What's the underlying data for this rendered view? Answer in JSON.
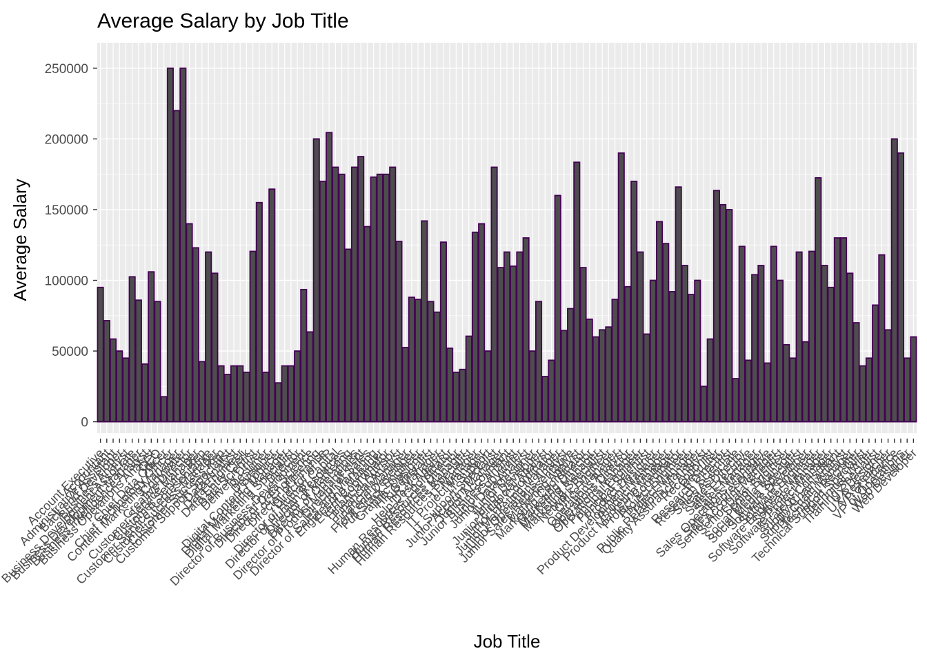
{
  "chart_data": {
    "type": "bar",
    "title": "Average Salary by Job Title",
    "xlabel": "Job Title",
    "ylabel": "Average Salary",
    "ylim": [
      -8000,
      268000
    ],
    "yticks": [
      0,
      50000,
      100000,
      150000,
      200000,
      250000
    ],
    "ytick_labels": [
      "0",
      "50000",
      "100000",
      "150000",
      "200000",
      "250000"
    ],
    "grid": true,
    "bar_fill": "#4d4d4d",
    "bar_outline": "#440154",
    "panel_background": "#ebebeb",
    "grid_color": "#ffffff",
    "categories": [
      "Account Executive",
      "Accountant",
      "Administrative Assistant",
      "Back end Developer",
      "Business Analyst",
      "Business Development Associate",
      "Business Development Manager",
      "Business Intelligence Analyst",
      "Business Operations Analyst",
      "CEO",
      "Chief Data Officer",
      "Chief Technology Officer",
      "Content Marketing Manager",
      "Copywriter",
      "Creative Director",
      "Customer Service Manager",
      "Customer Service Rep",
      "Customer Service Representative",
      "Customer Success Manager",
      "Customer Success Rep",
      "Customer Support Specialist",
      "Data Analyst",
      "Data Engineer",
      "Data Entry Clerk",
      "Data Scientist",
      "Delivery Driver",
      "Designer",
      "Developer",
      "Digital Content Producer",
      "Digital Marketing Manager",
      "Digital Marketing Specialist",
      "Director",
      "Director of Business Development",
      "Director of Data Science",
      "Director of Engineering",
      "Director of Finance",
      "Director of HR",
      "Director of Human Capital",
      "Director of Human Resources",
      "Director of Marketing",
      "Director of Operations",
      "Director of Product Management",
      "Director of Sales",
      "Director of Sales and Marketing",
      "Engineering Manager",
      "Event Coordinator",
      "Financial Advisor",
      "Financial Analyst",
      "Financial Manager",
      "Front end Developer",
      "Full Stack Engineer",
      "Graphic Designer",
      "HR Generalist",
      "HR Manager",
      "Help Desk Analyst",
      "Human Resources Coordinator",
      "Human Resources Director",
      "Human Resources Manager",
      "Human Resources Specialist",
      "IT Manager",
      "IT Project Manager",
      "IT Support",
      "IT Support Specialist",
      "Junior Account Manager",
      "Junior Accountant",
      "Junior Business Analyst",
      "Junior Copywriter",
      "Junior Data Analyst",
      "Junior Designer",
      "Junior Developer",
      "Junior Financial Analyst",
      "Junior HR Coordinator",
      "Junior Marketing Manager",
      "Junior Operations Analyst",
      "Junior Sales Representative",
      "Marketing Analyst",
      "Marketing Coordinator",
      "Marketing Director",
      "Marketing Manager",
      "Marketing Specialist",
      "Network Engineer",
      "Office Manager",
      "Operations Analyst",
      "Operations Director",
      "Operations Manager",
      "Principal Engineer",
      "Principal Scientist",
      "Product Designer",
      "Product Development Manager",
      "Product Manager",
      "Product Marketing Manager",
      "Project Coordinator",
      "Project Engineer",
      "Project Manager",
      "Public Relations Manager",
      "Quality Assurance Analyst",
      "Receptionist",
      "Recruiter",
      "Research Director",
      "Research Scientist",
      "Sales Associate",
      "Sales Director",
      "Sales Executive",
      "Sales Manager",
      "Sales Operations Manager",
      "Sales Representative",
      "Senior Account Manager",
      "Senior Data Scientist",
      "Senior Engineer",
      "Social Media Manager",
      "Social Media Specialist",
      "Software Developer",
      "Software Engineer",
      "Software Engineer Manager",
      "Software Manager",
      "Software Project Manager",
      "Strategy Consultant",
      "Supply Chain Analyst",
      "Supply Chain Manager",
      "Technical Recruiter",
      "Technical Support Specialist",
      "Technical Writer",
      "Training Specialist",
      "UX Designer",
      "UX Researcher",
      "VP of Finance",
      "VP of Operations",
      "Web Designer",
      "Web Developer"
    ],
    "values": [
      95000,
      71500,
      58500,
      50000,
      45000,
      102500,
      86000,
      40800,
      106000,
      85000,
      17700,
      250000,
      220000,
      250000,
      140000,
      123000,
      42500,
      120000,
      105000,
      39500,
      33500,
      39500,
      39500,
      35000,
      120500,
      155000,
      35000,
      164500,
      27500,
      39500,
      39500,
      50000,
      93500,
      63500,
      200000,
      170000,
      204500,
      180000,
      175000,
      122000,
      180000,
      187500,
      138000,
      173000,
      175000,
      175000,
      180000,
      127500,
      52500,
      88000,
      86500,
      142000,
      85000,
      77500,
      127000,
      52000,
      35000,
      37000,
      60500,
      134000,
      140000,
      50000,
      180000,
      109000,
      120000,
      110000,
      120000,
      130000,
      50000,
      85000,
      32000,
      43500,
      160000,
      64500,
      80000,
      183500,
      109000,
      72500,
      60000,
      65000,
      67000,
      86500,
      190000,
      95500,
      170000,
      120000,
      62000,
      100000,
      141500,
      126000,
      92000,
      166000,
      110500,
      90000,
      100000,
      25000,
      58500,
      163500,
      153500,
      150000,
      30500,
      124000,
      43500,
      104000,
      110500,
      41500,
      124000,
      100000,
      54500,
      45000,
      120000,
      56500,
      120500,
      172500,
      110500,
      95000,
      130000,
      130000,
      105000,
      70000,
      39500,
      45000,
      82500,
      118000,
      65000,
      200000,
      190000,
      45000,
      60000
    ]
  }
}
